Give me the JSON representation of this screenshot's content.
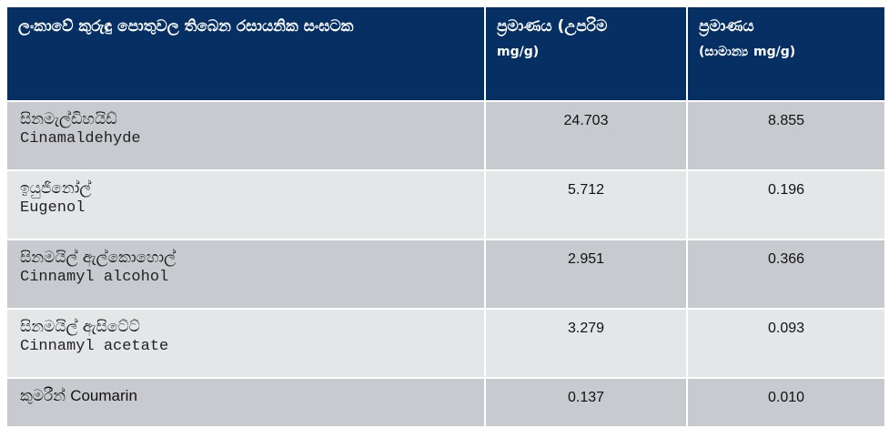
{
  "headers": {
    "compound": "ලංකාවේ කුරුඳු පොතුවල තිබෙන රසායනික සංඝටක",
    "max_label": "ප්‍රමාණය (උපරිම",
    "max_unit": "mg/g)",
    "avg_label": "ප්‍රමාණය",
    "avg_unit_prefix": "(සාමාන්‍ය",
    "avg_unit": "mg/g)"
  },
  "rows": [
    {
      "name_si": "සිනමැල්ඩිහයිඩ්",
      "name_en": "Cinamaldehyde",
      "max": "24.703",
      "avg": "8.855"
    },
    {
      "name_si": "ඉයුජිනෝල්",
      "name_en": "Eugenol",
      "max": "5.712",
      "avg": "0.196"
    },
    {
      "name_si": "සිනමයිල් ඇල්කොහොල්",
      "name_en": "Cinnamyl alcohol",
      "max": "2.951",
      "avg": "0.366"
    },
    {
      "name_si": "සිනමයිල් ඇසිටේට්",
      "name_en": "Cinnamyl acetate",
      "max": "3.279",
      "avg": "0.093"
    },
    {
      "name_si": "කුමරීන්",
      "name_en": "Coumarin",
      "max": "0.137",
      "avg": "0.010"
    }
  ]
}
